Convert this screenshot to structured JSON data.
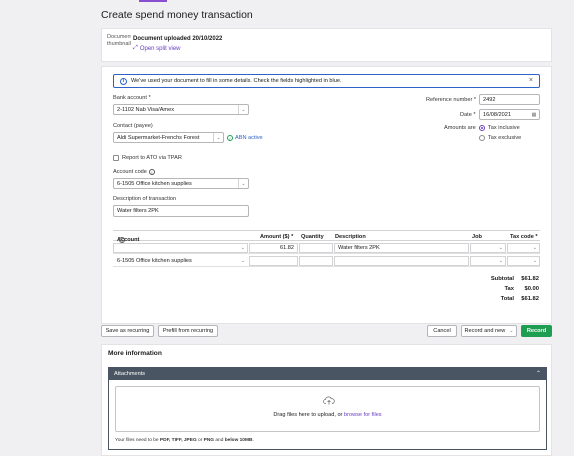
{
  "page": {
    "title": "Create spend money transaction"
  },
  "document": {
    "thumb_alt": "Document thumbnail",
    "title": "Document uploaded 20/10/2022",
    "split_view": "Open split view"
  },
  "banner": {
    "text": "We've used your document to fill in some details. Check the fields highlighted in blue."
  },
  "form": {
    "bank_account_label": "Bank account *",
    "bank_account_value": "2-1102  Nab Visa/Amex",
    "reference_label": "Reference number *",
    "reference_value": "2492",
    "date_label": "Date *",
    "date_value": "16/08/2021",
    "amounts_label": "Amounts are",
    "tax_inclusive": "Tax inclusive",
    "tax_exclusive": "Tax exclusive",
    "contact_label": "Contact (payee)",
    "contact_value": "Aldi Supermarket-Frenchs Forest",
    "abn_status": "ABN active",
    "report_ato": "Report to ATO via TPAR",
    "account_code_label": "Account code",
    "account_code_value": "6-1505  Office kitchen supplies",
    "description_label": "Description of transaction",
    "description_value": "Water filters 2PK"
  },
  "table": {
    "headers": {
      "account": "Account *",
      "amount": "Amount ($) *",
      "quantity": "Quantity",
      "description": "Description",
      "job": "Job",
      "tax_code": "Tax code *"
    },
    "rows": [
      {
        "account": "",
        "amount": "61.82",
        "quantity": "",
        "description": "Water filters 2PK",
        "job": "",
        "tax_code": ""
      },
      {
        "account": "6-1505  Office kitchen supplies",
        "amount": "",
        "quantity": "",
        "description": "",
        "job": "",
        "tax_code": ""
      }
    ]
  },
  "totals": {
    "subtotal_label": "Subtotal",
    "subtotal_value": "$61.82",
    "tax_label": "Tax",
    "tax_value": "$0.00",
    "total_label": "Total",
    "total_value": "$61.82"
  },
  "actions": {
    "save_recurring": "Save as recurring",
    "prefill_recurring": "Prefill from recurring",
    "cancel": "Cancel",
    "record_and_new": "Record and new",
    "record": "Record"
  },
  "more_info": {
    "title": "More information",
    "attachments": "Attachments",
    "drag_text": "Drag files here to upload, or ",
    "browse": "browse for files",
    "note_prefix": "Your files need to be ",
    "note_formats": "PDF, TIFF, JPEG",
    "note_or": " or ",
    "note_png": "PNG",
    "note_and": " and ",
    "note_size": "below 10MB",
    "note_end": "."
  },
  "colors": {
    "accent": "#6a3fc4",
    "record": "#1d9e50",
    "banner": "#2f62c7",
    "attach_header": "#4a5563"
  }
}
